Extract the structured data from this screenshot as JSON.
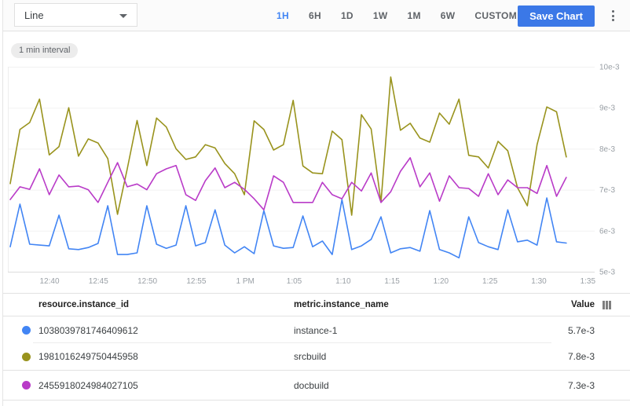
{
  "toolbar": {
    "chart_type_selector": "Line",
    "time_ranges": [
      "1H",
      "6H",
      "1D",
      "1W",
      "1M",
      "6W",
      "CUSTOM"
    ],
    "active_time_range": "1H",
    "save_button": "Save Chart"
  },
  "chart": {
    "interval_chip": "1 min interval"
  },
  "chart_data": {
    "type": "line",
    "title": "",
    "x_start_label": "12:36 PM",
    "x_step_minutes": 1,
    "x_tick_labels": [
      "12:40",
      "12:45",
      "12:50",
      "12:55",
      "1 PM",
      "1:05",
      "1:10",
      "1:15",
      "1:20",
      "1:25",
      "1:30",
      "1:35"
    ],
    "y_tick_labels": [
      "5e-3",
      "6e-3",
      "7e-3",
      "8e-3",
      "9e-3",
      "10e-3"
    ],
    "y_unit": "e-3",
    "ylim_e3": [
      5,
      10
    ],
    "grid": "horizontal-only",
    "legend_position": "table-below",
    "series": [
      {
        "name": "instance-1",
        "color": "#4285f4",
        "values_e3": [
          5.61,
          6.65,
          5.67,
          5.65,
          5.63,
          6.38,
          5.56,
          5.54,
          5.59,
          5.69,
          6.61,
          5.42,
          5.42,
          5.46,
          6.61,
          5.67,
          5.57,
          5.65,
          6.61,
          5.63,
          5.71,
          6.51,
          5.65,
          5.46,
          5.61,
          5.44,
          6.49,
          5.63,
          5.57,
          5.59,
          6.36,
          5.61,
          5.75,
          5.42,
          6.76,
          5.54,
          5.63,
          5.79,
          6.34,
          5.46,
          5.56,
          5.59,
          5.5,
          6.49,
          5.54,
          5.46,
          5.34,
          6.34,
          5.71,
          5.61,
          5.54,
          6.51,
          5.73,
          5.77,
          5.65,
          6.8,
          5.73,
          5.7
        ]
      },
      {
        "name": "srcbuild",
        "color": "#99931d",
        "values_e3": [
          7.15,
          8.47,
          8.64,
          9.21,
          7.85,
          8.05,
          9.0,
          7.82,
          8.24,
          8.14,
          7.76,
          6.4,
          7.51,
          8.69,
          7.59,
          8.75,
          8.53,
          8.0,
          7.74,
          7.8,
          8.1,
          8.02,
          7.64,
          7.39,
          6.88,
          8.68,
          8.47,
          7.97,
          8.1,
          9.18,
          7.58,
          7.41,
          7.39,
          8.43,
          8.22,
          6.38,
          8.83,
          8.48,
          6.69,
          9.75,
          8.45,
          8.62,
          8.26,
          8.16,
          8.87,
          8.6,
          9.21,
          7.84,
          7.8,
          7.53,
          8.18,
          7.95,
          7.05,
          6.61,
          8.1,
          9.02,
          8.9,
          7.8
        ]
      },
      {
        "name": "docbuild",
        "color": "#b93bc8",
        "values_e3": [
          6.76,
          7.07,
          7.01,
          7.51,
          6.88,
          7.36,
          7.07,
          7.09,
          7.0,
          6.69,
          7.18,
          7.66,
          7.07,
          7.14,
          7.0,
          7.39,
          7.51,
          7.59,
          6.88,
          6.74,
          7.22,
          7.53,
          7.05,
          7.18,
          7.01,
          6.78,
          6.51,
          7.34,
          7.18,
          6.69,
          6.69,
          6.69,
          7.18,
          6.88,
          6.78,
          7.18,
          6.97,
          7.41,
          6.69,
          6.95,
          7.45,
          7.78,
          7.07,
          7.41,
          6.72,
          7.34,
          7.05,
          7.03,
          6.84,
          7.39,
          6.88,
          7.24,
          7.05,
          7.05,
          6.91,
          7.59,
          6.84,
          7.3
        ]
      }
    ]
  },
  "table": {
    "columns": {
      "instance_id": "resource.instance_id",
      "instance_name": "metric.instance_name",
      "value": "Value"
    },
    "rows": [
      {
        "color": "#4285f4",
        "instance_id": "1038039781746409612",
        "instance_name": "instance-1",
        "value": "5.7e-3"
      },
      {
        "color": "#99931d",
        "instance_id": "1981016249750445958",
        "instance_name": "srcbuild",
        "value": "7.8e-3"
      },
      {
        "color": "#b93bc8",
        "instance_id": "2455918024984027105",
        "instance_name": "docbuild",
        "value": "7.3e-3"
      }
    ]
  },
  "colors": {
    "accent_blue": "#4285f4",
    "save_button_bg": "#3b78e7"
  }
}
